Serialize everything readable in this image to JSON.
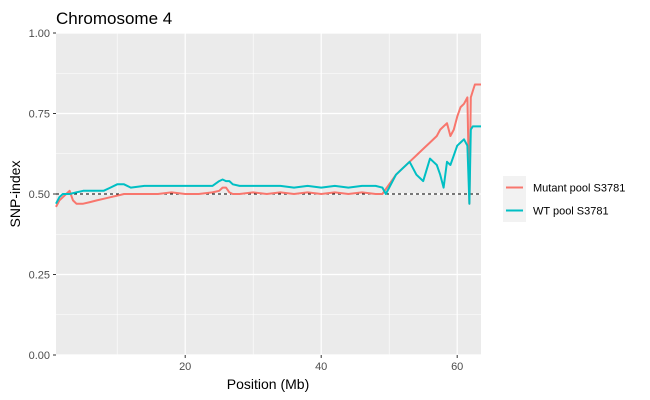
{
  "chart_data": {
    "type": "line",
    "title": "Chromosome 4",
    "xlabel": "Position (Mb)",
    "ylabel": "SNP-index",
    "xlim": [
      1,
      63.5
    ],
    "ylim": [
      0,
      1
    ],
    "x_ticks": [
      20,
      40,
      60
    ],
    "y_ticks": [
      0,
      0.25,
      0.5,
      0.75,
      1
    ],
    "x_tick_labels": [
      "20",
      "40",
      "60"
    ],
    "y_tick_labels": [
      "0.00",
      "0.25",
      "0.50",
      "0.75",
      "1.00"
    ],
    "grid": true,
    "panel_background": "#EBEBEB",
    "reference_line": {
      "y": 0.5,
      "style": "dashed",
      "color": "#000000"
    },
    "legend": {
      "position": "right"
    },
    "series": [
      {
        "name": "Mutant pool S3781",
        "color": "#F8766D",
        "x": [
          1,
          1.5,
          2,
          2.5,
          3,
          3.5,
          4,
          5,
          6,
          7,
          8,
          9,
          10,
          11,
          12,
          14,
          16,
          18,
          20,
          22,
          24,
          25,
          25.5,
          26,
          26.5,
          27,
          28,
          30,
          32,
          34,
          36,
          38,
          40,
          42,
          44,
          46,
          48,
          49,
          50,
          51,
          52,
          53,
          54,
          55,
          56,
          57,
          57.5,
          58,
          58.5,
          59,
          59.5,
          60,
          60.5,
          61,
          61.5,
          61.8,
          62,
          62.3,
          62.6,
          63,
          63.5
        ],
        "y": [
          0.46,
          0.48,
          0.49,
          0.5,
          0.51,
          0.48,
          0.47,
          0.47,
          0.475,
          0.48,
          0.485,
          0.49,
          0.495,
          0.5,
          0.5,
          0.5,
          0.5,
          0.505,
          0.5,
          0.5,
          0.505,
          0.51,
          0.52,
          0.52,
          0.505,
          0.5,
          0.5,
          0.505,
          0.5,
          0.505,
          0.5,
          0.505,
          0.5,
          0.505,
          0.5,
          0.505,
          0.5,
          0.5,
          0.53,
          0.56,
          0.58,
          0.6,
          0.62,
          0.64,
          0.66,
          0.68,
          0.7,
          0.71,
          0.72,
          0.68,
          0.7,
          0.74,
          0.77,
          0.78,
          0.8,
          0.47,
          0.8,
          0.82,
          0.84,
          0.84,
          0.84
        ]
      },
      {
        "name": "WT pool S3781",
        "color": "#00BFC4",
        "x": [
          1,
          1.5,
          2,
          3,
          4,
          5,
          6,
          7,
          8,
          9,
          10,
          11,
          12,
          14,
          16,
          18,
          20,
          22,
          24,
          25,
          25.5,
          26,
          26.5,
          27,
          28,
          30,
          32,
          34,
          36,
          38,
          40,
          42,
          44,
          46,
          48,
          49,
          49.5,
          50,
          51,
          52,
          53,
          54,
          55,
          56,
          56.5,
          57,
          57.5,
          58,
          58.5,
          59,
          59.5,
          60,
          60.5,
          61,
          61.5,
          61.8,
          62,
          62.3,
          62.6,
          63,
          63.5
        ],
        "y": [
          0.47,
          0.49,
          0.5,
          0.5,
          0.505,
          0.51,
          0.51,
          0.51,
          0.51,
          0.52,
          0.53,
          0.53,
          0.52,
          0.525,
          0.525,
          0.525,
          0.525,
          0.525,
          0.525,
          0.54,
          0.545,
          0.54,
          0.54,
          0.53,
          0.525,
          0.525,
          0.525,
          0.525,
          0.52,
          0.525,
          0.52,
          0.525,
          0.52,
          0.525,
          0.525,
          0.52,
          0.5,
          0.52,
          0.56,
          0.58,
          0.6,
          0.56,
          0.54,
          0.61,
          0.6,
          0.59,
          0.56,
          0.52,
          0.6,
          0.59,
          0.62,
          0.65,
          0.66,
          0.67,
          0.65,
          0.47,
          0.7,
          0.71,
          0.71,
          0.71,
          0.71
        ]
      }
    ]
  }
}
